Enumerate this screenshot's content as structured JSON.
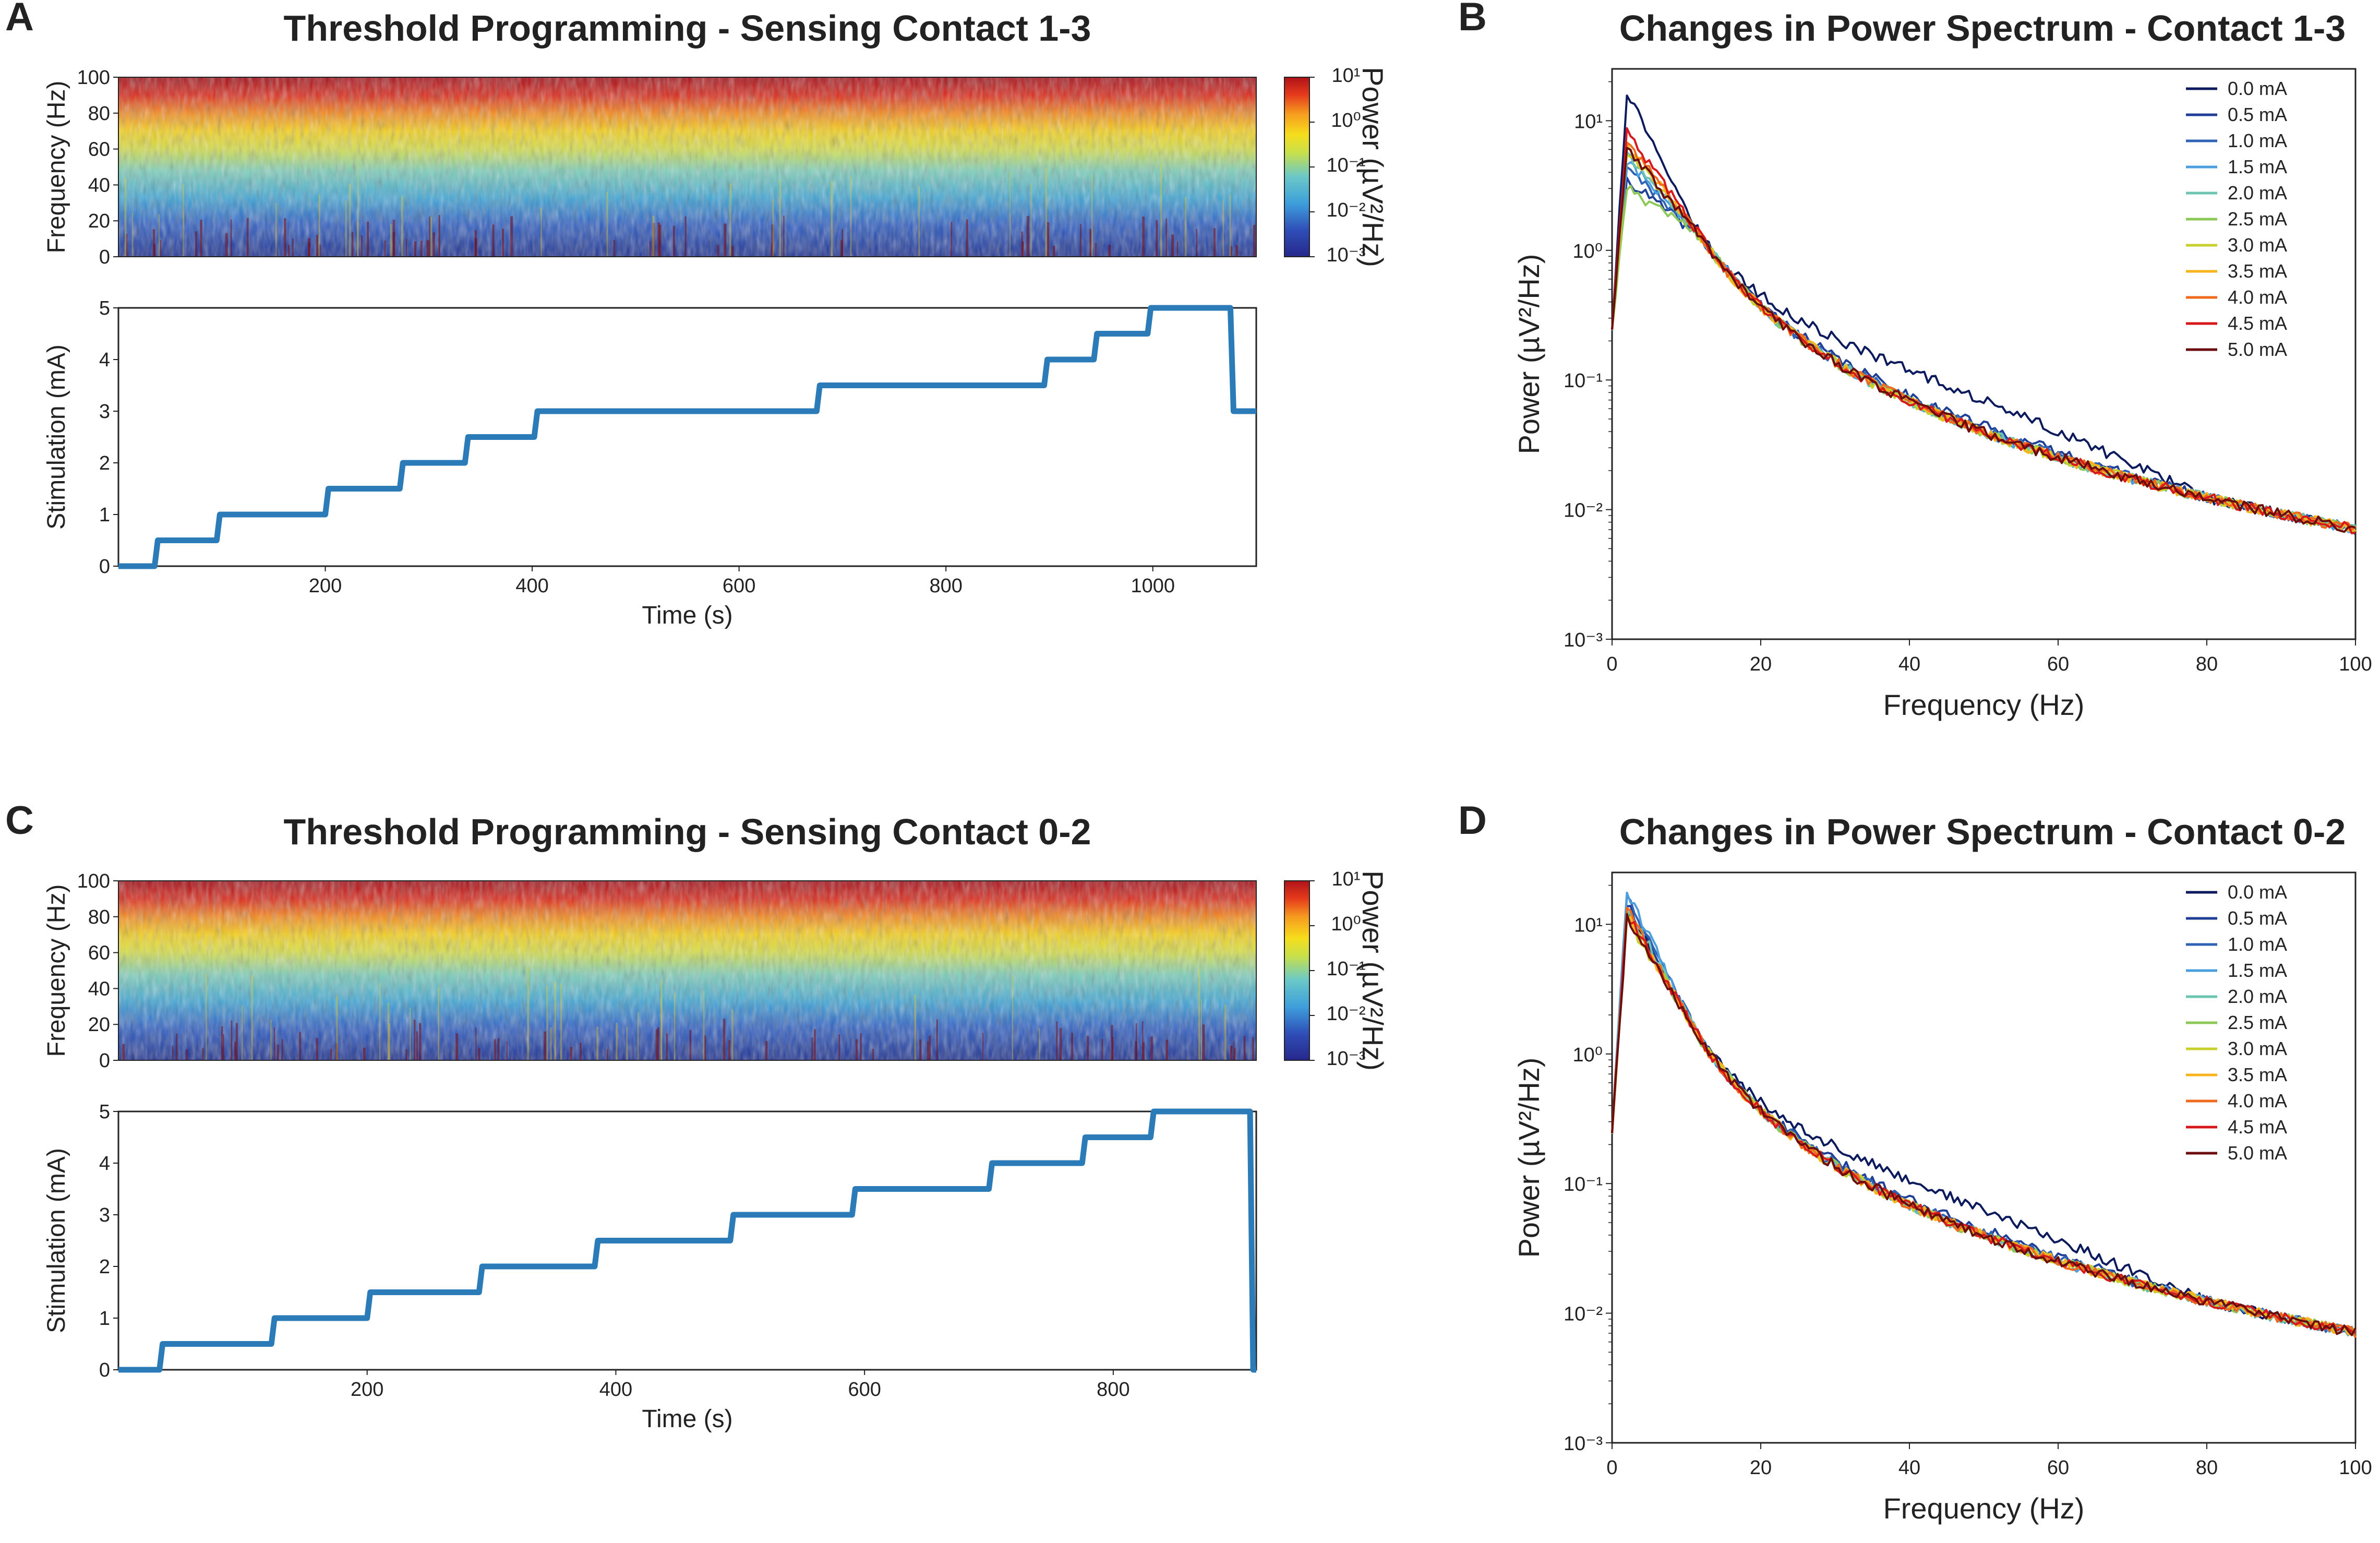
{
  "chart_data": [
    {
      "panel": "A",
      "type": "heatmap",
      "title": "Threshold Programming - Sensing Contact 1-3",
      "spectrogram": {
        "ylabel": "Frequency (Hz)",
        "ylim": [
          0,
          100
        ],
        "yticks": [
          "0",
          "20",
          "40",
          "60",
          "80",
          "100"
        ],
        "colorbar_label": "Power (µV²/Hz)",
        "colorbar_ticks": [
          "10¹",
          "10⁰",
          "10⁻¹",
          "10⁻²",
          "10⁻³"
        ],
        "clim_log10": [
          -3,
          1
        ]
      },
      "stimulation": {
        "type": "line",
        "ylabel": "Stimulation (mA)",
        "xlabel": "Time (s)",
        "xlim": [
          0,
          1100
        ],
        "ylim": [
          0,
          5
        ],
        "xticks": [
          "200",
          "400",
          "600",
          "800",
          "1000"
        ],
        "yticks": [
          "0",
          "1",
          "2",
          "3",
          "4",
          "5"
        ],
        "steps": [
          [
            0,
            0
          ],
          [
            35,
            0.5
          ],
          [
            95,
            1.0
          ],
          [
            200,
            1.5
          ],
          [
            272,
            2.0
          ],
          [
            335,
            2.5
          ],
          [
            402,
            3.0
          ],
          [
            675,
            3.5
          ],
          [
            895,
            4.0
          ],
          [
            943,
            4.5
          ],
          [
            995,
            5.0
          ],
          [
            1075,
            3.0
          ]
        ]
      }
    },
    {
      "panel": "B",
      "type": "line",
      "title": "Changes in Power Spectrum - Contact 1-3",
      "xlabel": "Frequency (Hz)",
      "ylabel": "Power (µV²/Hz)",
      "xlim": [
        0,
        100
      ],
      "ylim_log10": [
        -3,
        1.4
      ],
      "xticks": [
        "0",
        "20",
        "40",
        "60",
        "80",
        "100"
      ],
      "yticks": [
        "10¹",
        "10⁰",
        "10⁻¹",
        "10⁻²",
        "10⁻³"
      ],
      "series": [
        {
          "name": "0.0 mA",
          "color": "#0b1a5c",
          "peak": 17,
          "bump": 0.25
        },
        {
          "name": "0.5 mA",
          "color": "#1f3f96",
          "peak": 3.5,
          "bump": 0.05
        },
        {
          "name": "1.0 mA",
          "color": "#2f63b5",
          "peak": 4.5,
          "bump": 0.02
        },
        {
          "name": "1.5 mA",
          "color": "#4a9fdc",
          "peak": 5.0,
          "bump": 0.0
        },
        {
          "name": "2.0 mA",
          "color": "#6cc3b0",
          "peak": 5.5,
          "bump": 0.0
        },
        {
          "name": "2.5 mA",
          "color": "#8cc858",
          "peak": 3.0,
          "bump": 0.0
        },
        {
          "name": "3.0 mA",
          "color": "#c9cf2a",
          "peak": 6.0,
          "bump": 0.0
        },
        {
          "name": "3.5 mA",
          "color": "#f7b41c",
          "peak": 6.5,
          "bump": 0.0
        },
        {
          "name": "4.0 mA",
          "color": "#ef6a1e",
          "peak": 7.0,
          "bump": 0.0
        },
        {
          "name": "4.5 mA",
          "color": "#d7191c",
          "peak": 8.0,
          "bump": 0.0
        },
        {
          "name": "5.0 mA",
          "color": "#6b0d0d",
          "peak": 6.0,
          "bump": 0.0
        }
      ]
    },
    {
      "panel": "C",
      "type": "heatmap",
      "title": "Threshold Programming - Sensing Contact 0-2",
      "spectrogram": {
        "ylabel": "Frequency (Hz)",
        "ylim": [
          0,
          100
        ],
        "yticks": [
          "0",
          "20",
          "40",
          "60",
          "80",
          "100"
        ],
        "colorbar_label": "Power (µV²/Hz)",
        "colorbar_ticks": [
          "10¹",
          "10⁰",
          "10⁻¹",
          "10⁻²",
          "10⁻³"
        ],
        "clim_log10": [
          -3,
          1
        ]
      },
      "stimulation": {
        "type": "line",
        "ylabel": "Stimulation (mA)",
        "xlabel": "Time (s)",
        "xlim": [
          0,
          915
        ],
        "ylim": [
          0,
          5
        ],
        "xticks": [
          "200",
          "400",
          "600",
          "800"
        ],
        "yticks": [
          "0",
          "1",
          "2",
          "3",
          "4",
          "5"
        ],
        "steps": [
          [
            0,
            0
          ],
          [
            33,
            0.5
          ],
          [
            123,
            1.0
          ],
          [
            200,
            1.5
          ],
          [
            290,
            2.0
          ],
          [
            383,
            2.5
          ],
          [
            492,
            3.0
          ],
          [
            590,
            3.5
          ],
          [
            700,
            4.0
          ],
          [
            775,
            4.5
          ],
          [
            830,
            5.0
          ],
          [
            910,
            0
          ]
        ]
      }
    },
    {
      "panel": "D",
      "type": "line",
      "title": "Changes in Power Spectrum - Contact 0-2",
      "xlabel": "Frequency (Hz)",
      "ylabel": "Power (µV²/Hz)",
      "xlim": [
        0,
        100
      ],
      "ylim_log10": [
        -3,
        1.4
      ],
      "xticks": [
        "0",
        "20",
        "40",
        "60",
        "80",
        "100"
      ],
      "yticks": [
        "10¹",
        "10⁰",
        "10⁻¹",
        "10⁻²",
        "10⁻³"
      ],
      "series": [
        {
          "name": "0.0 mA",
          "color": "#0b1a5c",
          "peak": 13,
          "bump": 0.2
        },
        {
          "name": "0.5 mA",
          "color": "#1f3f96",
          "peak": 15,
          "bump": 0.05
        },
        {
          "name": "1.0 mA",
          "color": "#2f63b5",
          "peak": 16,
          "bump": 0.02
        },
        {
          "name": "1.5 mA",
          "color": "#4a9fdc",
          "peak": 18,
          "bump": 0.0
        },
        {
          "name": "2.0 mA",
          "color": "#6cc3b0",
          "peak": 14,
          "bump": 0.0
        },
        {
          "name": "2.5 mA",
          "color": "#8cc858",
          "peak": 12,
          "bump": 0.0
        },
        {
          "name": "3.0 mA",
          "color": "#c9cf2a",
          "peak": 11,
          "bump": 0.0
        },
        {
          "name": "3.5 mA",
          "color": "#f7b41c",
          "peak": 12,
          "bump": 0.0
        },
        {
          "name": "4.0 mA",
          "color": "#ef6a1e",
          "peak": 13,
          "bump": 0.0
        },
        {
          "name": "4.5 mA",
          "color": "#d7191c",
          "peak": 12,
          "bump": 0.0
        },
        {
          "name": "5.0 mA",
          "color": "#6b0d0d",
          "peak": 11,
          "bump": 0.0
        }
      ]
    }
  ]
}
